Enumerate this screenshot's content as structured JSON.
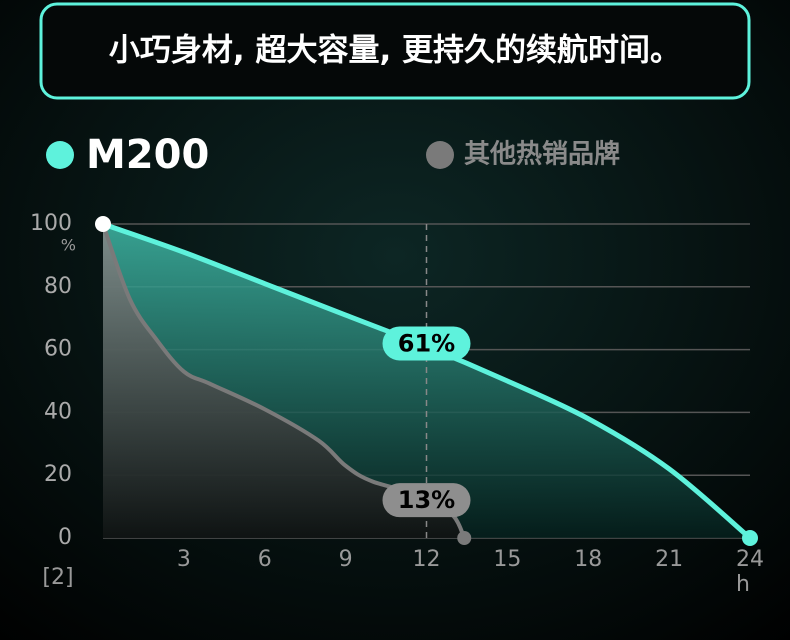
{
  "chart_data": {
    "type": "area-line",
    "title": "小巧身材, 超大容量, 更持久的续航时间。",
    "ylabel": "%",
    "xlabel": "h",
    "footnote": "[2]",
    "xlim": [
      0,
      24
    ],
    "ylim": [
      0,
      100
    ],
    "xticks": [
      3,
      6,
      9,
      12,
      15,
      18,
      21,
      24
    ],
    "yticks": [
      0,
      20,
      40,
      60,
      80,
      100
    ],
    "grid": true,
    "series": [
      {
        "name": "M200",
        "color": "#5ef2dc",
        "x": [
          0,
          3,
          6,
          9,
          12,
          15,
          18,
          21,
          24
        ],
        "values": [
          100,
          91,
          81,
          71,
          61,
          50,
          38,
          22,
          0
        ],
        "value_labels": [
          null,
          null,
          null,
          null,
          "61%",
          null,
          null,
          null,
          null
        ]
      },
      {
        "name": "其他热销品牌",
        "color": "#7a7a7a",
        "x": [
          0,
          1,
          2,
          3,
          4,
          6,
          8,
          9,
          10,
          12,
          13,
          13.4
        ],
        "values": [
          100,
          76,
          63,
          53,
          49,
          41,
          31,
          23,
          18,
          13,
          7,
          0
        ],
        "value_labels": [
          null,
          null,
          null,
          null,
          null,
          null,
          null,
          null,
          null,
          "13%",
          null,
          null
        ]
      }
    ]
  }
}
